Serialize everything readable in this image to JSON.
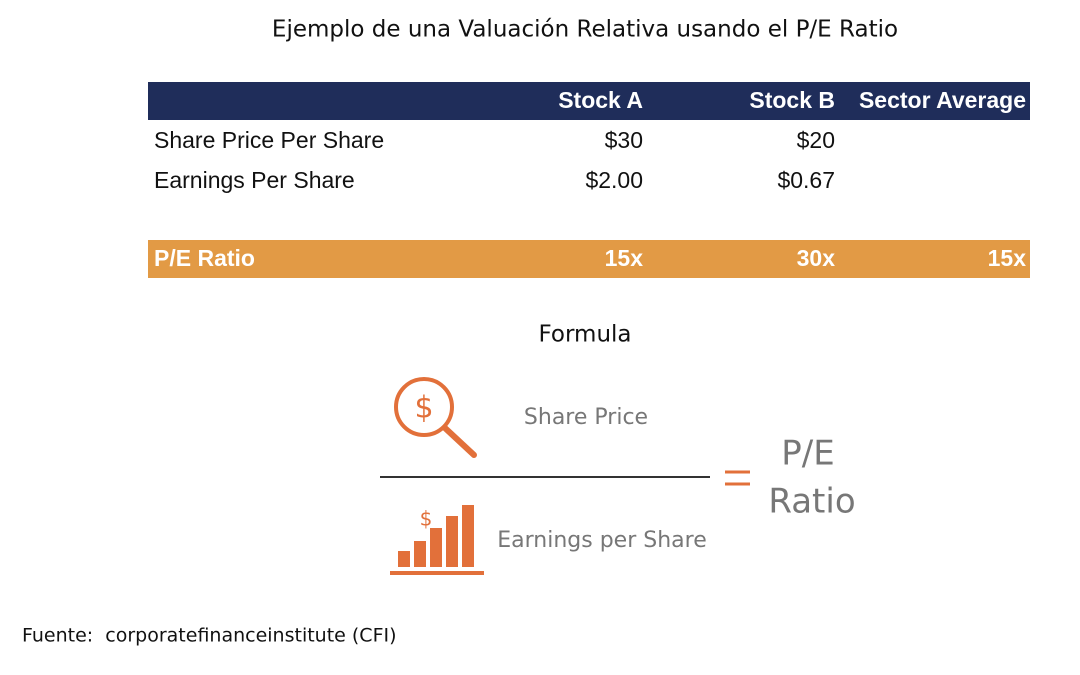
{
  "title": "Ejemplo de una Valuación Relativa usando el P/E Ratio",
  "table": {
    "columns": [
      "Stock A",
      "Stock B",
      "Sector Average"
    ],
    "rows": [
      {
        "label": "Share Price Per Share",
        "values": [
          "$30",
          "$20"
        ]
      },
      {
        "label": "Earnings Per Share",
        "values": [
          "$2.00",
          "$0.67"
        ]
      }
    ],
    "result_row": {
      "label": "P/E Ratio",
      "values": [
        "15x",
        "30x",
        "15x"
      ]
    }
  },
  "formula": {
    "title": "Formula",
    "numerator": "Share Price",
    "denominator": "Earnings per Share",
    "result_lines": [
      "P/E",
      "Ratio"
    ]
  },
  "source": "Fuente:  corporatefinanceinstitute (CFI)"
}
